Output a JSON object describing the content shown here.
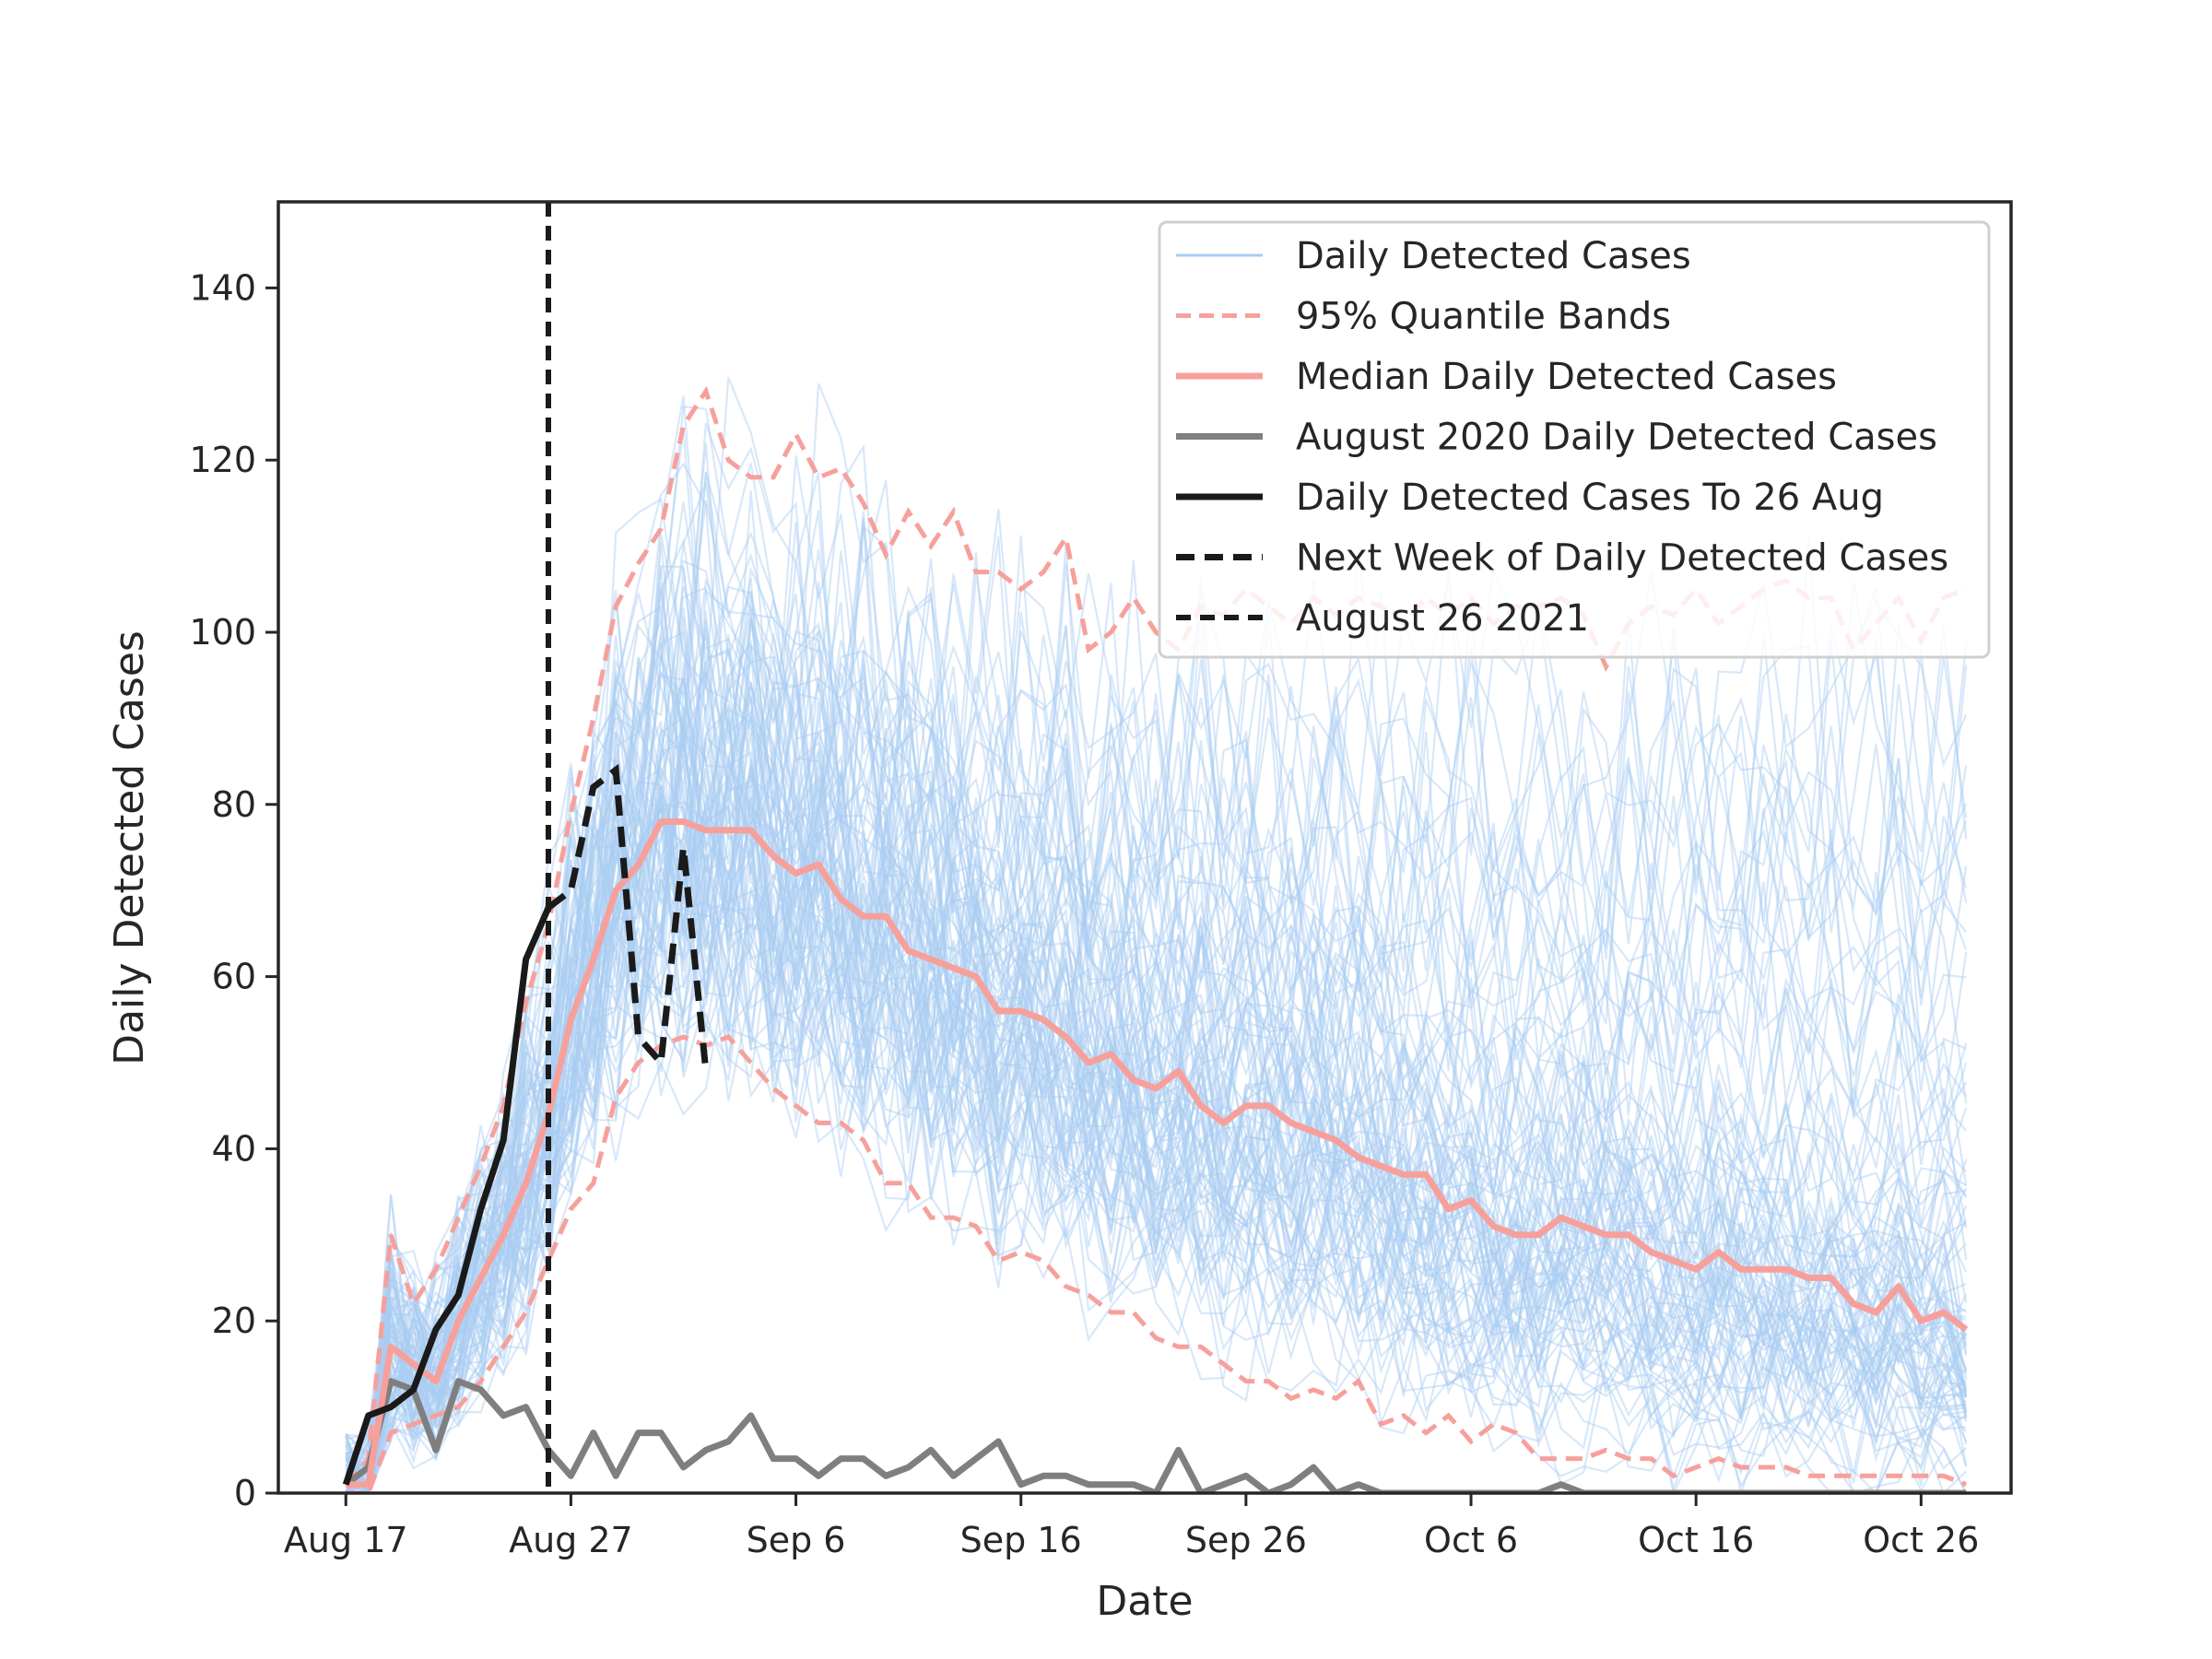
{
  "chart_data": {
    "type": "line",
    "xlabel": "Date",
    "ylabel": "Daily Detected Cases",
    "xlim": [
      "2021-08-14",
      "2021-10-30"
    ],
    "ylim": [
      0,
      150
    ],
    "x_ticks": [
      "Aug 17",
      "Aug 27",
      "Sep 6",
      "Sep 16",
      "Sep 26",
      "Oct 6",
      "Oct 16",
      "Oct 26"
    ],
    "x_tick_dates": [
      "2021-08-17",
      "2021-08-27",
      "2021-09-06",
      "2021-09-16",
      "2021-09-26",
      "2021-10-06",
      "2021-10-16",
      "2021-10-26"
    ],
    "y_ticks": [
      0,
      20,
      40,
      60,
      80,
      100,
      120,
      140
    ],
    "grid": false,
    "legend_placement": "upper right",
    "colors": {
      "simulations": "#a9cdf2",
      "quantile_bands": "#f7a09b",
      "median": "#f7a09b",
      "august_2020": "#7f7f7f",
      "actual": "#1a1a1a",
      "next_week": "#1a1a1a",
      "vline": "#1a1a1a"
    },
    "legend": [
      {
        "label": "Daily Detected Cases",
        "style": "sim"
      },
      {
        "label": "95% Quantile Bands",
        "style": "quantile"
      },
      {
        "label": "Median Daily Detected Cases",
        "style": "median"
      },
      {
        "label": "August 2020 Daily Detected Cases",
        "style": "aug2020"
      },
      {
        "label": "Daily Detected Cases To 26 Aug",
        "style": "actual"
      },
      {
        "label": "Next Week of Daily Detected Cases",
        "style": "nextweek"
      },
      {
        "label": "August 26 2021",
        "style": "vline"
      }
    ],
    "simulation_count": 100,
    "start_date": "2021-08-17",
    "series": [
      {
        "name": "Median Daily Detected Cases",
        "values": [
          1,
          1,
          17,
          15,
          13,
          20,
          25,
          30,
          36,
          44,
          55,
          62,
          70,
          73,
          78,
          78,
          77,
          77,
          77,
          74,
          72,
          73,
          69,
          67,
          67,
          63,
          62,
          61,
          60,
          56,
          56,
          55,
          53,
          50,
          51,
          48,
          47,
          49,
          45,
          43,
          45,
          45,
          43,
          42,
          41,
          39,
          38,
          37,
          37,
          33,
          34,
          31,
          30,
          30,
          32,
          31,
          30,
          30,
          28,
          27,
          26,
          28,
          26,
          26,
          26,
          25,
          25,
          22,
          21,
          24,
          20,
          21,
          19
        ]
      },
      {
        "name": "95% Quantile Bands (upper)",
        "values": [
          1,
          4,
          30,
          22,
          26,
          32,
          38,
          45,
          57,
          66,
          79,
          90,
          103,
          108,
          112,
          124,
          128,
          120,
          118,
          118,
          123,
          118,
          119,
          115,
          109,
          114,
          110,
          114,
          107,
          107,
          105,
          107,
          111,
          98,
          100,
          104,
          100,
          98,
          103,
          102,
          105,
          103,
          101,
          104,
          102,
          104,
          103,
          101,
          104,
          102,
          104,
          101,
          103,
          103,
          104,
          102,
          96,
          101,
          103,
          102,
          105,
          101,
          103,
          105,
          106,
          104,
          104,
          98,
          101,
          104,
          99,
          104,
          105
        ]
      },
      {
        "name": "95% Quantile Bands (lower)",
        "values": [
          0,
          0,
          7,
          8,
          9,
          10,
          13,
          17,
          21,
          27,
          33,
          36,
          46,
          50,
          52,
          53,
          52,
          53,
          50,
          47,
          45,
          43,
          43,
          41,
          36,
          36,
          32,
          32,
          31,
          27,
          28,
          27,
          24,
          23,
          21,
          21,
          18,
          17,
          17,
          15,
          13,
          13,
          11,
          12,
          11,
          13,
          8,
          9,
          7,
          9,
          6,
          8,
          7,
          4,
          4,
          4,
          5,
          4,
          4,
          2,
          3,
          4,
          3,
          3,
          3,
          2,
          2,
          2,
          2,
          2,
          2,
          2,
          1
        ]
      },
      {
        "name": "August 2020 Daily Detected Cases",
        "values": [
          1,
          3,
          13,
          12,
          5,
          13,
          12,
          9,
          10,
          5,
          2,
          7,
          2,
          7,
          7,
          3,
          5,
          6,
          9,
          4,
          4,
          2,
          4,
          4,
          2,
          3,
          5,
          2,
          4,
          6,
          1,
          2,
          2,
          1,
          1,
          1,
          0,
          5,
          0,
          1,
          2,
          0,
          1,
          3,
          0,
          1,
          0,
          0,
          0,
          0,
          0,
          0,
          0,
          0,
          1,
          0,
          0,
          0,
          0,
          0,
          0,
          0,
          0,
          0,
          0,
          0,
          0,
          0,
          0,
          0,
          0,
          0,
          0
        ]
      },
      {
        "name": "Daily Detected Cases To 26 Aug",
        "values": [
          1,
          9,
          10,
          12,
          19,
          23,
          33,
          41,
          62,
          68
        ]
      },
      {
        "name": "Next Week of Daily Detected Cases",
        "start_date": "2021-08-26",
        "values": [
          68,
          70,
          82,
          84,
          53,
          50,
          75,
          49
        ]
      }
    ],
    "vline": {
      "label": "August 26 2021",
      "x": "2021-08-26"
    }
  }
}
